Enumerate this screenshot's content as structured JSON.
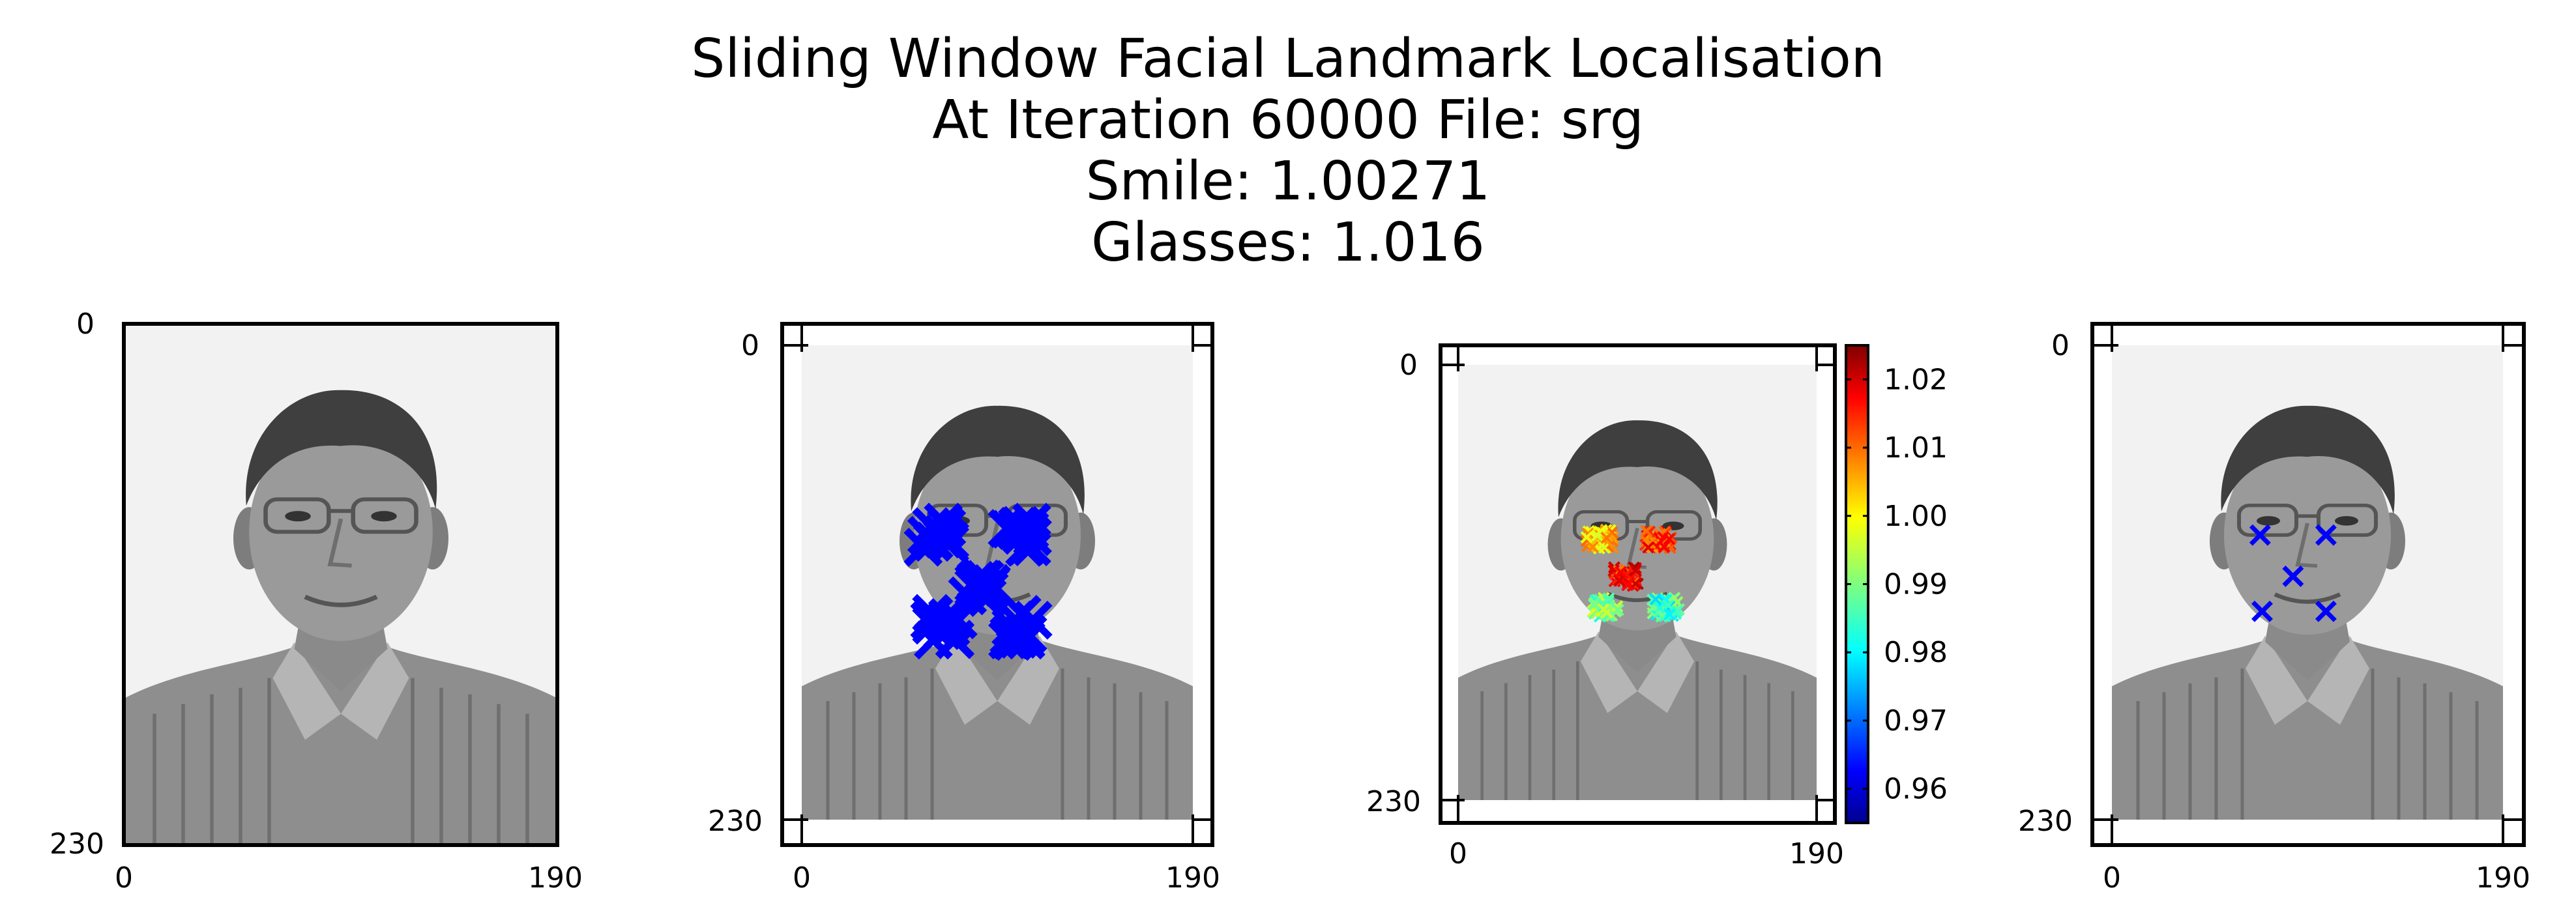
{
  "title": {
    "lines": [
      "Sliding Window Facial Landmark Localisation",
      "At Iteration 60000 File: srg",
      "Smile: 1.00271",
      "Glasses: 1.016"
    ]
  },
  "chart_data": [
    {
      "type": "image",
      "panel": "original image",
      "xticks": [
        "0",
        "190"
      ],
      "yticks": [
        "0",
        "230"
      ],
      "xlim": [
        0,
        190
      ],
      "ylim": [
        230,
        0
      ]
    },
    {
      "type": "scatter",
      "panel": "sliding window detections",
      "marker": "x",
      "color": "#0000ff",
      "xticks": [
        "0",
        "190"
      ],
      "yticks": [
        "0",
        "230"
      ],
      "xlim": [
        0,
        190
      ],
      "ylim": [
        230,
        0
      ],
      "clusters": [
        {
          "x": 66,
          "y": 92
        },
        {
          "x": 106,
          "y": 92
        },
        {
          "x": 86,
          "y": 117
        },
        {
          "x": 69,
          "y": 137
        },
        {
          "x": 107,
          "y": 137
        }
      ]
    },
    {
      "type": "scatter",
      "panel": "detections coloured by score",
      "colormap": "jet",
      "xticks": [
        "0",
        "190"
      ],
      "yticks": [
        "0",
        "230"
      ],
      "xlim": [
        0,
        190
      ],
      "ylim": [
        230,
        0
      ],
      "colorbar": {
        "ticks": [
          "1.02",
          "1.01",
          "1.00",
          "0.99",
          "0.98",
          "0.97",
          "0.96"
        ],
        "tick_values": [
          1.02,
          1.01,
          1.0,
          0.99,
          0.98,
          0.97,
          0.96
        ],
        "range": [
          0.955,
          1.025
        ]
      },
      "clusters": [
        {
          "x": 75,
          "y": 92,
          "value": 1.003
        },
        {
          "x": 106,
          "y": 92,
          "value": 1.012
        },
        {
          "x": 89,
          "y": 112,
          "value": 1.015
        },
        {
          "x": 78,
          "y": 128,
          "value": 0.99
        },
        {
          "x": 110,
          "y": 128,
          "value": 0.985
        }
      ]
    },
    {
      "type": "scatter",
      "panel": "final landmarks",
      "marker": "x",
      "color": "#0000ff",
      "xticks": [
        "0",
        "190"
      ],
      "yticks": [
        "0",
        "230"
      ],
      "xlim": [
        0,
        190
      ],
      "ylim": [
        230,
        0
      ],
      "points": [
        {
          "x": 72,
          "y": 92
        },
        {
          "x": 104,
          "y": 92
        },
        {
          "x": 88,
          "y": 112
        },
        {
          "x": 73,
          "y": 129
        },
        {
          "x": 104,
          "y": 129
        }
      ]
    }
  ]
}
